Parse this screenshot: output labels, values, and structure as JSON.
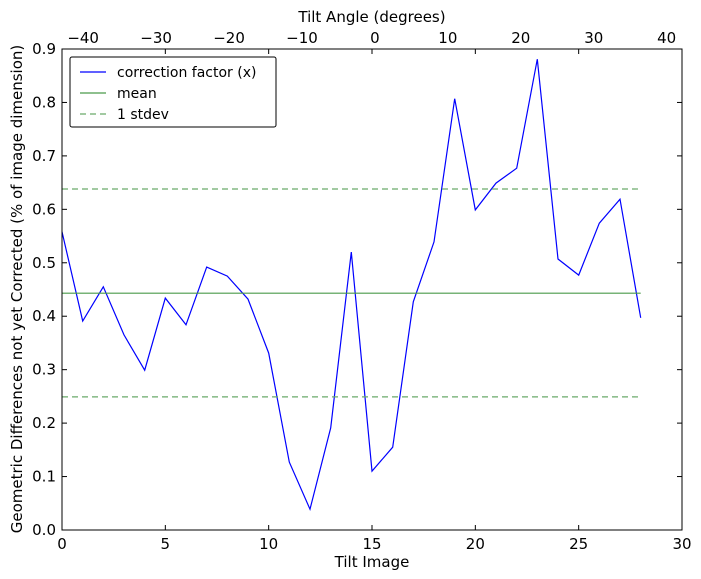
{
  "chart_data": {
    "type": "line",
    "title": "",
    "xlabel": "Tilt Image",
    "ylabel": "Geometric Differences not yet Corrected (% of image dimension)",
    "top_xlabel": "Tilt Angle (degrees)",
    "xlim": [
      0,
      30
    ],
    "ylim": [
      0,
      0.9
    ],
    "top_xlim": [
      -42.9,
      42.1
    ],
    "xticks": [
      0,
      5,
      10,
      15,
      20,
      25,
      30
    ],
    "xtick_labels": [
      "0",
      "5",
      "10",
      "15",
      "20",
      "25",
      "30"
    ],
    "yticks": [
      0,
      0.1,
      0.2,
      0.3,
      0.4,
      0.5,
      0.6,
      0.7,
      0.8,
      0.9
    ],
    "ytick_labels": [
      "0.0",
      "0.1",
      "0.2",
      "0.3",
      "0.4",
      "0.5",
      "0.6",
      "0.7",
      "0.8",
      "0.9"
    ],
    "top_xticks": [
      -40,
      -30,
      -20,
      -10,
      0,
      10,
      20,
      30,
      40
    ],
    "top_xtick_labels": [
      "−40",
      "−30",
      "−20",
      "−10",
      "0",
      "10",
      "20",
      "30",
      "40"
    ],
    "grid": false,
    "legend_placement": "top-left",
    "series": [
      {
        "name": "correction factor (x)",
        "color": "#0000ff",
        "style": "solid",
        "x": [
          0,
          1,
          2,
          3,
          4,
          5,
          6,
          7,
          8,
          9,
          10,
          11,
          12,
          13,
          14,
          15,
          16,
          17,
          18,
          19,
          20,
          21,
          22,
          23,
          24,
          25,
          26,
          27,
          28
        ],
        "values": [
          0.558,
          0.391,
          0.455,
          0.365,
          0.299,
          0.434,
          0.384,
          0.492,
          0.475,
          0.432,
          0.331,
          0.127,
          0.039,
          0.191,
          0.52,
          0.11,
          0.155,
          0.427,
          0.539,
          0.807,
          0.599,
          0.649,
          0.677,
          0.881,
          0.507,
          0.477,
          0.574,
          0.619,
          0.397
        ]
      },
      {
        "name": "mean",
        "color": "#4a9a4a",
        "style": "solid",
        "x": [
          0,
          28
        ],
        "values": [
          0.443,
          0.443
        ]
      },
      {
        "name": "1 stdev",
        "color": "#6aaa6a",
        "style": "dashed",
        "x": [
          0,
          28
        ],
        "values": [
          0.638,
          0.638
        ]
      },
      {
        "name": "1 stdev (lower)",
        "legend": false,
        "color": "#6aaa6a",
        "style": "dashed",
        "x": [
          0,
          28
        ],
        "values": [
          0.249,
          0.249
        ]
      }
    ],
    "legend": [
      "correction factor (x)",
      "mean",
      "1 stdev"
    ]
  }
}
